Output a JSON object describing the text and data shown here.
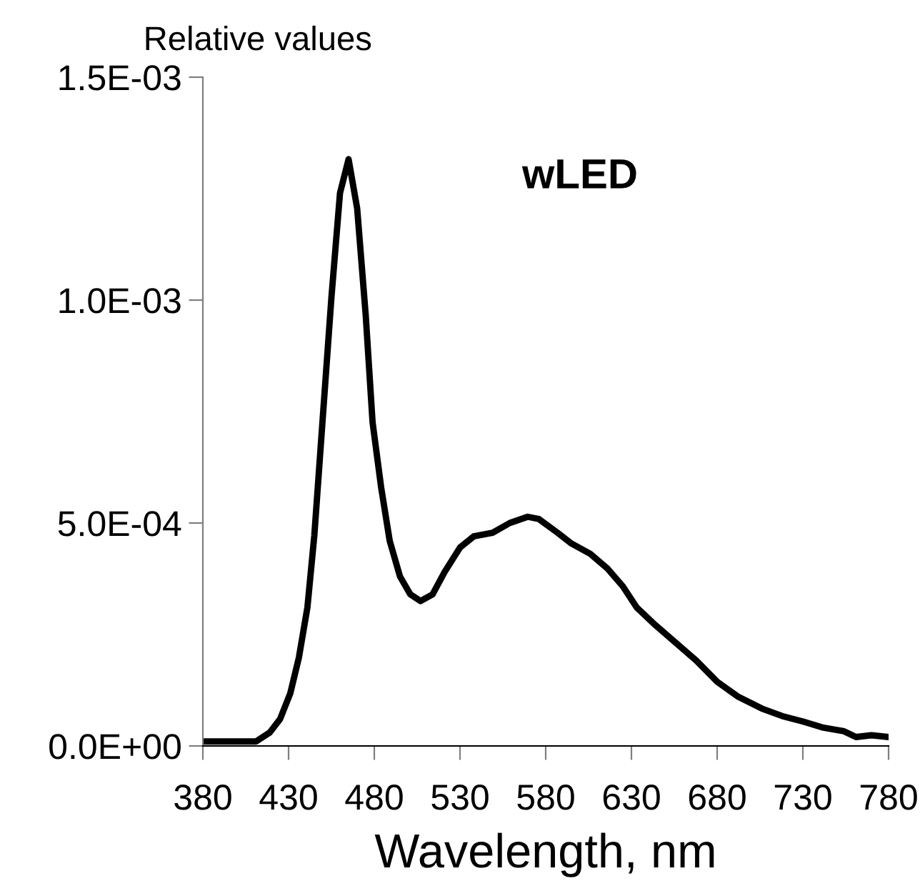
{
  "chart_data": {
    "type": "line",
    "ylabel": "Relative values",
    "xlabel": "Wavelength, nm",
    "annotations": [
      "wLED"
    ],
    "x": [
      380,
      400,
      411,
      419,
      425,
      431,
      436,
      441,
      445,
      450,
      455,
      460,
      465,
      470,
      475,
      479,
      484,
      489,
      495,
      501,
      507,
      514,
      521,
      530,
      538,
      549,
      559,
      569.5,
      576,
      587,
      595,
      606,
      616,
      625,
      633,
      644,
      656,
      668,
      680,
      692,
      706,
      718,
      730,
      742,
      754,
      761,
      770,
      780
    ],
    "series": [
      {
        "color": "#000000",
        "values": [
          1e-05,
          1e-05,
          1e-05,
          3e-05,
          6e-05,
          0.000118,
          0.000198,
          0.000311,
          0.000471,
          0.000739,
          0.001006,
          0.00124,
          0.001316,
          0.001206,
          0.000966,
          0.000726,
          0.00058,
          0.00046,
          0.00038,
          0.00034,
          0.000325,
          0.00034,
          0.00039,
          0.000445,
          0.00047,
          0.000478,
          0.0005,
          0.000514,
          0.000509,
          0.000478,
          0.000454,
          0.000431,
          0.000398,
          0.000358,
          0.000311,
          0.000271,
          0.000231,
          0.000191,
          0.000144,
          0.000111,
          8.4e-05,
          6.7e-05,
          5.5e-05,
          4.1e-05,
          3.3e-05,
          2e-05,
          2.4e-05,
          2e-05
        ]
      }
    ],
    "xlim": [
      380,
      780
    ],
    "xticks": [
      380,
      430,
      480,
      530,
      580,
      630,
      680,
      730,
      780
    ],
    "ylim": [
      0,
      0.0015
    ],
    "yticks": [
      {
        "value": 0,
        "label": "0.0E+00"
      },
      {
        "value": 0.0005,
        "label": "5.0E-04"
      },
      {
        "value": 0.001,
        "label": "1.0E-03"
      },
      {
        "value": 0.0015,
        "label": "1.5E-03"
      }
    ],
    "grid": false,
    "legend": false,
    "marker": "none",
    "line_style": "solid"
  }
}
